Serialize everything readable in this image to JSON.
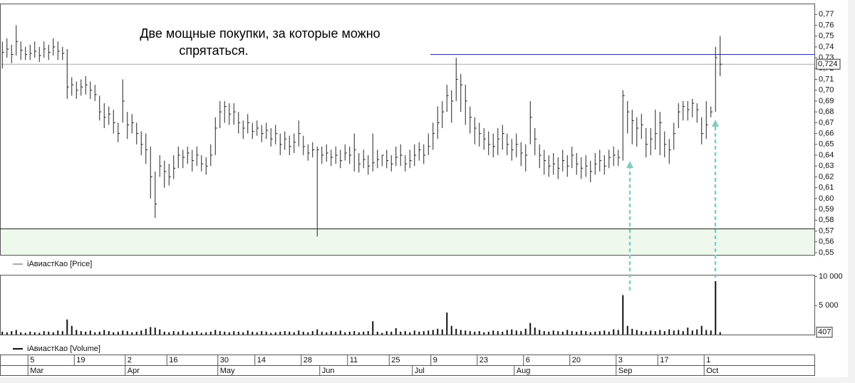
{
  "chart_data": [
    {
      "type": "ohlc",
      "legend": "iАвиастКао [Price]",
      "color": "#222222",
      "annotation": [
        "Две мощные покупки, за которые можно",
        "спрятаться."
      ],
      "ylim": [
        0.548,
        0.78
      ],
      "yticks": [
        {
          "value": 0.55,
          "label": "0,55"
        },
        {
          "value": 0.56,
          "label": "0,56"
        },
        {
          "value": 0.57,
          "label": "0,57"
        },
        {
          "value": 0.58,
          "label": "0,58"
        },
        {
          "value": 0.59,
          "label": "0,59"
        },
        {
          "value": 0.6,
          "label": "0,60"
        },
        {
          "value": 0.61,
          "label": "0,61"
        },
        {
          "value": 0.62,
          "label": "0,62"
        },
        {
          "value": 0.63,
          "label": "0,63"
        },
        {
          "value": 0.64,
          "label": "0,64"
        },
        {
          "value": 0.65,
          "label": "0,65"
        },
        {
          "value": 0.66,
          "label": "0,66"
        },
        {
          "value": 0.67,
          "label": "0,67"
        },
        {
          "value": 0.68,
          "label": "0,68"
        },
        {
          "value": 0.69,
          "label": "0,69"
        },
        {
          "value": 0.7,
          "label": "0,70"
        },
        {
          "value": 0.71,
          "label": "0,71"
        },
        {
          "value": 0.72,
          "label": "0,72"
        },
        {
          "value": 0.73,
          "label": "0,73"
        },
        {
          "value": 0.74,
          "label": "0,74"
        },
        {
          "value": 0.75,
          "label": "0,75"
        },
        {
          "value": 0.76,
          "label": "0,76"
        },
        {
          "value": 0.77,
          "label": "0,77"
        }
      ],
      "level": 0.733,
      "level_color": "#2b2bd6",
      "last_price": {
        "value": 0.724,
        "label": "0,724"
      },
      "zone_top": 0.572,
      "zone_color": "#eef8ec",
      "categories": [
        null,
        null,
        null,
        null,
        null,
        null,
        "5",
        null,
        null,
        null,
        null,
        null,
        null,
        null,
        null,
        null,
        "19",
        null,
        null,
        null,
        null,
        null,
        null,
        null,
        null,
        null,
        null,
        "2",
        null,
        null,
        null,
        null,
        null,
        null,
        null,
        null,
        "16",
        null,
        null,
        null,
        null,
        null,
        null,
        null,
        null,
        null,
        null,
        "30",
        null,
        null,
        null,
        null,
        null,
        null,
        null,
        "14",
        null,
        null,
        null,
        null,
        null,
        null,
        null,
        null,
        null,
        "28",
        null,
        null,
        null,
        null,
        null,
        null,
        null,
        null,
        null,
        "11",
        null,
        null,
        null,
        null,
        null,
        null,
        null,
        null,
        "25",
        null,
        null,
        null,
        null,
        null,
        null,
        null,
        null,
        "9",
        null,
        null,
        null,
        null,
        null,
        null,
        null,
        null,
        null,
        "23",
        null,
        null,
        null,
        null,
        null,
        null,
        null,
        null,
        null,
        "6",
        null,
        null,
        null,
        null,
        null,
        null,
        null,
        null,
        null,
        "20",
        null,
        null,
        null,
        null,
        null,
        null,
        null,
        null,
        null,
        "3",
        null,
        null,
        null,
        null,
        null,
        null,
        null,
        null,
        "17",
        null,
        null,
        null,
        null,
        null,
        null,
        null,
        null,
        null,
        "1",
        null,
        null,
        null
      ],
      "months": [
        null,
        null,
        null,
        null,
        null,
        null,
        "Mar",
        null,
        null,
        null,
        null,
        null,
        null,
        null,
        null,
        null,
        null,
        null,
        null,
        null,
        null,
        null,
        null,
        null,
        null,
        null,
        null,
        "Apr",
        null,
        null,
        null,
        null,
        null,
        null,
        null,
        null,
        null,
        null,
        null,
        null,
        null,
        null,
        null,
        null,
        null,
        null,
        null,
        "May",
        null,
        null,
        null,
        null,
        null,
        null,
        null,
        null,
        null,
        null,
        null,
        null,
        null,
        null,
        null,
        null,
        null,
        null,
        null,
        null,
        null,
        "Jun",
        null,
        null,
        null,
        null,
        null,
        null,
        null,
        null,
        null,
        null,
        null,
        null,
        null,
        null,
        null,
        null,
        null,
        null,
        null,
        "Jul",
        null,
        null,
        null,
        null,
        null,
        null,
        null,
        null,
        null,
        null,
        null,
        null,
        null,
        null,
        null,
        null,
        null,
        null,
        null,
        null,
        null,
        "Aug",
        null,
        null,
        null,
        null,
        null,
        null,
        null,
        null,
        null,
        null,
        null,
        null,
        null,
        null,
        null,
        null,
        null,
        null,
        null,
        null,
        null,
        "Sep",
        null,
        null,
        null,
        null,
        null,
        null,
        null,
        null,
        null,
        null,
        null,
        null,
        null,
        null,
        null,
        null,
        null,
        null,
        "Oct",
        null,
        null,
        null
      ],
      "high": [
        0.745,
        0.748,
        0.742,
        0.76,
        0.745,
        0.74,
        0.742,
        0.745,
        0.74,
        0.745,
        0.742,
        0.748,
        0.745,
        0.74,
        0.738,
        0.712,
        0.708,
        0.71,
        0.713,
        0.708,
        0.705,
        0.695,
        0.688,
        0.685,
        0.682,
        0.67,
        0.71,
        0.68,
        0.678,
        0.67,
        0.662,
        0.66,
        0.648,
        0.625,
        0.64,
        0.635,
        0.632,
        0.64,
        0.648,
        0.645,
        0.648,
        0.645,
        0.648,
        0.64,
        0.638,
        0.65,
        0.675,
        0.69,
        0.69,
        0.688,
        0.688,
        0.68,
        0.672,
        0.678,
        0.67,
        0.672,
        0.668,
        0.67,
        0.665,
        0.668,
        0.66,
        0.662,
        0.658,
        0.66,
        0.672,
        0.658,
        0.65,
        0.652,
        0.648,
        0.648,
        0.65,
        0.645,
        0.648,
        0.645,
        0.65,
        0.648,
        0.66,
        0.642,
        0.645,
        0.64,
        0.66,
        0.645,
        0.64,
        0.645,
        0.64,
        0.648,
        0.65,
        0.64,
        0.645,
        0.65,
        0.652,
        0.65,
        0.66,
        0.67,
        0.685,
        0.69,
        0.705,
        0.7,
        0.73,
        0.715,
        0.705,
        0.685,
        0.675,
        0.67,
        0.665,
        0.662,
        0.66,
        0.665,
        0.668,
        0.66,
        0.655,
        0.66,
        0.652,
        0.65,
        0.69,
        0.665,
        0.65,
        0.645,
        0.64,
        0.642,
        0.638,
        0.645,
        0.64,
        0.648,
        0.642,
        0.638,
        0.64,
        0.635,
        0.642,
        0.645,
        0.64,
        0.645,
        0.648,
        0.645,
        0.7,
        0.69,
        0.682,
        0.675,
        0.678,
        0.665,
        0.665,
        0.682,
        0.68,
        0.662,
        0.655,
        0.67,
        0.688,
        0.69,
        0.69,
        0.692,
        0.688,
        0.675,
        0.69,
        0.685,
        0.74,
        0.75
      ],
      "low": [
        0.72,
        0.73,
        0.725,
        0.732,
        0.728,
        0.728,
        0.728,
        0.73,
        0.726,
        0.73,
        0.728,
        0.732,
        0.728,
        0.728,
        0.692,
        0.695,
        0.692,
        0.695,
        0.696,
        0.692,
        0.69,
        0.672,
        0.665,
        0.668,
        0.66,
        0.652,
        0.67,
        0.655,
        0.66,
        0.65,
        0.64,
        0.632,
        0.6,
        0.582,
        0.62,
        0.61,
        0.612,
        0.618,
        0.628,
        0.628,
        0.632,
        0.625,
        0.63,
        0.625,
        0.622,
        0.63,
        0.64,
        0.665,
        0.67,
        0.668,
        0.668,
        0.66,
        0.655,
        0.66,
        0.655,
        0.658,
        0.652,
        0.655,
        0.648,
        0.65,
        0.64,
        0.645,
        0.64,
        0.642,
        0.648,
        0.64,
        0.635,
        0.638,
        0.565,
        0.632,
        0.634,
        0.63,
        0.632,
        0.628,
        0.635,
        0.632,
        0.625,
        0.624,
        0.628,
        0.622,
        0.625,
        0.628,
        0.63,
        0.628,
        0.625,
        0.63,
        0.63,
        0.625,
        0.628,
        0.63,
        0.635,
        0.632,
        0.64,
        0.645,
        0.655,
        0.665,
        0.68,
        0.67,
        0.69,
        0.68,
        0.668,
        0.66,
        0.65,
        0.648,
        0.645,
        0.64,
        0.638,
        0.64,
        0.645,
        0.64,
        0.635,
        0.638,
        0.63,
        0.625,
        0.65,
        0.64,
        0.628,
        0.622,
        0.62,
        0.622,
        0.618,
        0.625,
        0.62,
        0.628,
        0.622,
        0.618,
        0.62,
        0.615,
        0.622,
        0.625,
        0.622,
        0.628,
        0.63,
        0.63,
        0.635,
        0.66,
        0.65,
        0.648,
        0.655,
        0.638,
        0.64,
        0.645,
        0.64,
        0.638,
        0.632,
        0.645,
        0.665,
        0.672,
        0.672,
        0.675,
        0.67,
        0.65,
        0.655,
        0.675,
        0.68,
        0.713
      ],
      "close": [
        0.735,
        0.738,
        0.733,
        0.745,
        0.737,
        0.733,
        0.734,
        0.736,
        0.732,
        0.738,
        0.735,
        0.74,
        0.736,
        0.734,
        0.703,
        0.705,
        0.7,
        0.703,
        0.705,
        0.7,
        0.696,
        0.68,
        0.675,
        0.678,
        0.67,
        0.66,
        0.69,
        0.668,
        0.67,
        0.66,
        0.65,
        0.645,
        0.62,
        0.595,
        0.63,
        0.625,
        0.62,
        0.628,
        0.64,
        0.638,
        0.642,
        0.635,
        0.64,
        0.632,
        0.63,
        0.64,
        0.665,
        0.68,
        0.685,
        0.678,
        0.68,
        0.67,
        0.665,
        0.67,
        0.662,
        0.665,
        0.66,
        0.663,
        0.655,
        0.66,
        0.65,
        0.655,
        0.648,
        0.652,
        0.66,
        0.648,
        0.642,
        0.645,
        0.645,
        0.64,
        0.642,
        0.638,
        0.64,
        0.635,
        0.642,
        0.64,
        0.645,
        0.632,
        0.636,
        0.63,
        0.633,
        0.636,
        0.64,
        0.635,
        0.632,
        0.638,
        0.64,
        0.632,
        0.635,
        0.64,
        0.645,
        0.64,
        0.648,
        0.66,
        0.67,
        0.68,
        0.695,
        0.69,
        0.71,
        0.705,
        0.69,
        0.675,
        0.665,
        0.66,
        0.655,
        0.65,
        0.648,
        0.655,
        0.66,
        0.65,
        0.645,
        0.65,
        0.642,
        0.64,
        0.675,
        0.655,
        0.64,
        0.635,
        0.63,
        0.632,
        0.628,
        0.635,
        0.63,
        0.64,
        0.632,
        0.628,
        0.63,
        0.625,
        0.632,
        0.635,
        0.63,
        0.638,
        0.64,
        0.638,
        0.695,
        0.68,
        0.672,
        0.665,
        0.668,
        0.65,
        0.655,
        0.66,
        0.67,
        0.65,
        0.645,
        0.66,
        0.68,
        0.685,
        0.682,
        0.688,
        0.682,
        0.66,
        0.668,
        0.68,
        0.73,
        0.724
      ]
    },
    {
      "type": "bar",
      "legend": "iАвиастКао [Volume]",
      "color": "#111111",
      "ylim": [
        0,
        10300
      ],
      "yticks": [
        {
          "value": 5000,
          "label": "5 000"
        },
        {
          "value": 10000,
          "label": "10 000"
        }
      ],
      "last_value": 407,
      "values": [
        500,
        400,
        600,
        800,
        400,
        300,
        500,
        400,
        300,
        600,
        500,
        400,
        700,
        600,
        2600,
        1500,
        800,
        600,
        500,
        700,
        400,
        500,
        800,
        600,
        400,
        500,
        700,
        600,
        400,
        500,
        700,
        1000,
        1300,
        1200,
        900,
        500,
        400,
        600,
        500,
        700,
        400,
        500,
        600,
        300,
        400,
        500,
        800,
        600,
        500,
        400,
        600,
        500,
        400,
        700,
        500,
        400,
        600,
        500,
        300,
        400,
        500,
        600,
        500,
        400,
        700,
        500,
        400,
        600,
        900,
        500,
        400,
        600,
        500,
        700,
        400,
        500,
        600,
        400,
        500,
        600,
        2300,
        500,
        300,
        600,
        500,
        1100,
        500,
        600,
        400,
        700,
        500,
        600,
        700,
        800,
        1000,
        900,
        3800,
        1500,
        1000,
        800,
        700,
        600,
        500,
        600,
        400,
        500,
        700,
        600,
        500,
        800,
        900,
        700,
        600,
        1000,
        2000,
        1200,
        800,
        600,
        500,
        700,
        600,
        500,
        800,
        600,
        500,
        700,
        600,
        400,
        500,
        600,
        700,
        500,
        900,
        800,
        6800,
        1500,
        1000,
        800,
        600,
        500,
        700,
        600,
        800,
        600,
        900,
        700,
        800,
        600,
        1200,
        700,
        900,
        1500,
        800,
        700,
        9200,
        407
      ]
    }
  ]
}
